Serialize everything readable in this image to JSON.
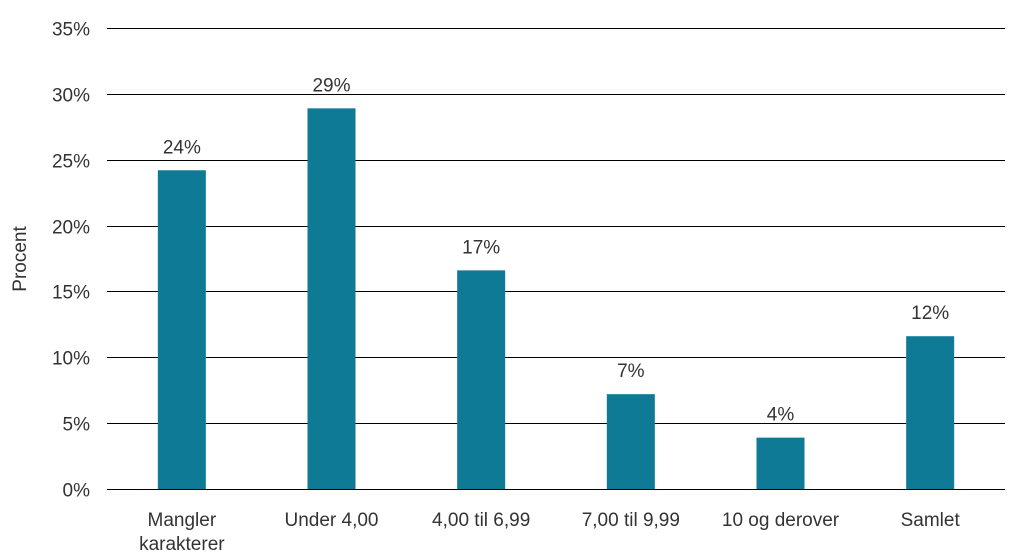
{
  "chart_data": {
    "type": "bar",
    "title": "",
    "xlabel": "",
    "ylabel": "Procent",
    "ylim": [
      0,
      35
    ],
    "y_ticks": [
      0,
      5,
      10,
      15,
      20,
      25,
      30,
      35
    ],
    "y_tick_labels": [
      "0%",
      "5%",
      "10%",
      "15%",
      "20%",
      "25%",
      "30%",
      "35%"
    ],
    "categories": [
      [
        "Mangler",
        "karakterer"
      ],
      [
        "Under 4,00"
      ],
      [
        "4,00 til 6,99"
      ],
      [
        "7,00 til 9,99"
      ],
      [
        "10 og derover"
      ],
      [
        "Samlet"
      ]
    ],
    "values": [
      24.2,
      28.9,
      16.6,
      7.2,
      3.9,
      11.6
    ],
    "data_labels": [
      "24%",
      "29%",
      "17%",
      "7%",
      "4%",
      "12%"
    ],
    "grid": true,
    "legend": "none",
    "colors": {
      "bar": "#0E7A96",
      "grid": "#000000",
      "text": "#333333"
    }
  }
}
